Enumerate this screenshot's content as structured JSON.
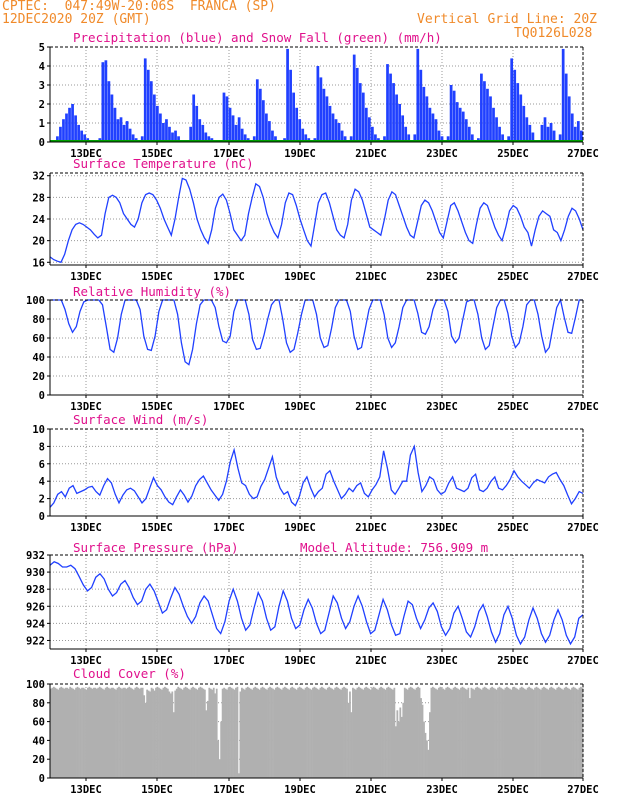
{
  "header": {
    "line1": "CPTEC:  047:49W-20:06S  FRANCA (SP)",
    "line2": "12DEC2020 20Z (GMT)",
    "grid_line": "Vertical Grid Line: 20Z",
    "code": "TQ0126L028"
  },
  "colors": {
    "orange": "#f08a2a",
    "magenta": "#e0108c",
    "blue": "#2040ff",
    "green": "#00a000",
    "gray": "#b0b0b0"
  },
  "x_labels": [
    "13DEC",
    "15DEC",
    "17DEC",
    "19DEC",
    "21DEC",
    "23DEC",
    "25DEC",
    "27DEC"
  ],
  "chart_data": [
    {
      "type": "bar",
      "title": "Precipitation (blue) and Snow Fall (green) (mm/h)",
      "ylim": [
        0,
        5
      ],
      "yticks": [
        "0",
        "1",
        "2",
        "3",
        "4",
        "5"
      ],
      "series": [
        {
          "name": "Precipitation",
          "values": [
            0,
            0.1,
            0.3,
            0.8,
            1.2,
            1.5,
            1.8,
            2.0,
            1.4,
            0.9,
            0.6,
            0.4,
            0.2,
            0.1,
            0,
            0,
            0.2,
            4.2,
            4.3,
            3.2,
            2.5,
            1.8,
            1.2,
            1.3,
            0.9,
            1.1,
            0.7,
            0.4,
            0.2,
            0,
            0.3,
            4.4,
            3.8,
            3.2,
            2.5,
            1.9,
            1.5,
            1.0,
            1.2,
            0.8,
            0.5,
            0.6,
            0.3,
            0,
            0,
            0.1,
            0.8,
            2.5,
            1.9,
            1.2,
            0.9,
            0.5,
            0.3,
            0.2,
            0.1,
            0,
            0.1,
            2.6,
            2.4,
            1.8,
            1.4,
            0.9,
            1.3,
            0.7,
            0.4,
            0.2,
            0,
            0.3,
            3.3,
            2.8,
            2.2,
            1.5,
            1.1,
            0.6,
            0.3,
            0.1,
            0,
            0.2,
            4.9,
            3.8,
            2.6,
            1.8,
            1.2,
            0.7,
            0.4,
            0.2,
            0,
            0.2,
            4.0,
            3.4,
            2.8,
            2.4,
            1.9,
            1.5,
            1.2,
            1.0,
            0.6,
            0.3,
            0,
            0.3,
            4.6,
            3.9,
            3.1,
            2.6,
            1.8,
            1.3,
            0.8,
            0.4,
            0.2,
            0,
            0.3,
            4.1,
            3.6,
            3.1,
            2.5,
            2.0,
            1.4,
            0.8,
            0.4,
            0,
            0.4,
            4.9,
            3.8,
            2.9,
            2.4,
            1.8,
            1.5,
            1.2,
            0.6,
            0.3,
            0,
            0.3,
            3.0,
            2.7,
            2.1,
            1.8,
            1.6,
            1.2,
            0.8,
            0.4,
            0,
            0.2,
            3.6,
            3.2,
            2.8,
            2.4,
            1.8,
            1.3,
            0.8,
            0.4,
            0,
            0.3,
            4.4,
            3.8,
            3.1,
            2.5,
            1.9,
            1.3,
            0.9,
            0.5,
            0,
            0.1,
            0.9,
            1.3,
            0.8,
            1.0,
            0.6,
            0,
            0.4,
            4.9,
            3.6,
            2.4,
            1.5,
            0.8,
            1.1,
            0.6
          ]
        },
        {
          "name": "Snow Fall",
          "values": [
            0
          ]
        }
      ]
    },
    {
      "type": "line",
      "title": "Surface Temperature (nC)",
      "ylim": [
        15.5,
        32.5
      ],
      "yticks": [
        "16",
        "20",
        "24",
        "28",
        "32"
      ],
      "ytick_values": [
        16,
        20,
        24,
        28,
        32
      ],
      "values": [
        17,
        16.5,
        16.2,
        16.0,
        17.5,
        20,
        22,
        23,
        23.3,
        23,
        22.5,
        22,
        21.2,
        20.5,
        21,
        25,
        28,
        28.4,
        28,
        27,
        25,
        24,
        23,
        22.5,
        24,
        27,
        28.5,
        28.8,
        28.5,
        27.5,
        26,
        24,
        22.5,
        21,
        24,
        28,
        31.5,
        31.2,
        29.5,
        27,
        24,
        22,
        20.5,
        19.5,
        22,
        26,
        28,
        28.6,
        27.5,
        25,
        22,
        21,
        20,
        21,
        25,
        28,
        30.5,
        30,
        28,
        25,
        23,
        21.5,
        20.5,
        23,
        27,
        28.8,
        28.5,
        26.5,
        24,
        22,
        20,
        19,
        23,
        27,
        28.5,
        28.8,
        27,
        24.5,
        22,
        21,
        20.5,
        23,
        27.5,
        29.5,
        29,
        27.5,
        25,
        22.5,
        22,
        21.5,
        21,
        24,
        27.5,
        29,
        28.5,
        26.5,
        24.5,
        22.5,
        21,
        20.5,
        23.5,
        26.5,
        27.5,
        27,
        25.5,
        23.5,
        21.5,
        20.5,
        23.5,
        26.5,
        27,
        25.5,
        23.5,
        21.5,
        20,
        19.5,
        23,
        26,
        27,
        26.5,
        24.5,
        22.5,
        21,
        20,
        22.5,
        25.5,
        26.5,
        26,
        24.5,
        22.5,
        21.5,
        19,
        22,
        24.5,
        25.5,
        25,
        24.5,
        22,
        21.5,
        20,
        22,
        24.5,
        26,
        25.5,
        24,
        22
      ]
    },
    {
      "type": "line",
      "title": "Relative Humidity (%)",
      "ylim": [
        0,
        100
      ],
      "yticks": [
        "0",
        "20",
        "40",
        "60",
        "80",
        "100"
      ],
      "ytick_values": [
        0,
        20,
        40,
        60,
        80,
        100
      ],
      "values": [
        100,
        100,
        100,
        100,
        90,
        75,
        66,
        72,
        88,
        98,
        100,
        100,
        100,
        100,
        95,
        72,
        48,
        45,
        60,
        85,
        100,
        100,
        100,
        100,
        90,
        62,
        48,
        47,
        62,
        88,
        100,
        100,
        100,
        100,
        85,
        55,
        35,
        32,
        48,
        75,
        95,
        100,
        100,
        100,
        92,
        72,
        57,
        55,
        62,
        88,
        100,
        100,
        100,
        85,
        58,
        48,
        49,
        63,
        80,
        95,
        100,
        100,
        80,
        55,
        45,
        48,
        65,
        85,
        100,
        100,
        100,
        85,
        60,
        50,
        52,
        70,
        92,
        100,
        100,
        100,
        88,
        62,
        48,
        50,
        70,
        90,
        100,
        100,
        100,
        85,
        60,
        50,
        55,
        72,
        92,
        100,
        100,
        100,
        86,
        66,
        64,
        72,
        90,
        100,
        100,
        100,
        88,
        62,
        55,
        60,
        80,
        98,
        100,
        100,
        85,
        60,
        48,
        52,
        72,
        92,
        100,
        100,
        86,
        62,
        50,
        55,
        72,
        95,
        100,
        100,
        85,
        62,
        45,
        50,
        72,
        92,
        100,
        82,
        66,
        65,
        82,
        100,
        100
      ]
    },
    {
      "type": "line",
      "title": "Surface Wind (m/s)",
      "ylim": [
        0,
        10
      ],
      "yticks": [
        "0",
        "2",
        "4",
        "6",
        "8",
        "10"
      ],
      "ytick_values": [
        0,
        2,
        4,
        6,
        8,
        10
      ],
      "values": [
        1,
        1.5,
        2.5,
        2.8,
        2.2,
        3.2,
        3.5,
        2.6,
        2.8,
        3.0,
        3.3,
        3.4,
        2.8,
        2.4,
        3.5,
        4.3,
        3.8,
        2.5,
        1.5,
        2.4,
        3.0,
        3.2,
        2.9,
        2.2,
        1.5,
        2.0,
        3.2,
        4.4,
        3.5,
        3.0,
        2.2,
        1.6,
        1.3,
        2.2,
        3.0,
        2.4,
        1.6,
        2.3,
        3.5,
        4.2,
        4.6,
        3.8,
        3.0,
        2.4,
        1.8,
        2.5,
        4.0,
        6.2,
        7.6,
        5.5,
        3.8,
        3.5,
        2.5,
        2.0,
        2.2,
        3.4,
        4.2,
        5.5,
        6.8,
        4.5,
        3.2,
        2.5,
        2.8,
        1.6,
        1.2,
        2.2,
        3.8,
        4.5,
        3.2,
        2.2,
        2.8,
        3.2,
        4.8,
        5.2,
        4.0,
        3.0,
        2.0,
        2.5,
        3.2,
        2.8,
        3.5,
        3.8,
        2.6,
        2.2,
        3.0,
        3.6,
        4.5,
        7.5,
        5.5,
        3.0,
        2.5,
        3.2,
        4.0,
        4.0,
        7.0,
        8.0,
        5.0,
        2.8,
        3.5,
        4.5,
        4.2,
        3.0,
        2.5,
        2.8,
        3.8,
        4.5,
        3.2,
        3.0,
        2.8,
        3.2,
        4.4,
        4.8,
        3.0,
        2.8,
        3.2,
        4.0,
        4.5,
        3.2,
        3.0,
        3.5,
        4.2,
        5.2,
        4.5,
        4.0,
        3.6,
        3.2,
        3.8,
        4.2,
        4.0,
        3.8,
        4.5,
        4.8,
        5.0,
        4.2,
        3.5,
        2.4,
        1.4,
        2.0,
        2.8,
        2.6
      ]
    },
    {
      "type": "line",
      "title": "Surface Pressure (hPa)",
      "annotation": "Model Altitude: 756.909  m",
      "ylim": [
        921,
        932
      ],
      "yticks": [
        "922",
        "924",
        "926",
        "928",
        "930",
        "932"
      ],
      "ytick_values": [
        922,
        924,
        926,
        928,
        930,
        932
      ],
      "values": [
        930.8,
        931.2,
        931.0,
        930.6,
        930.6,
        930.8,
        930.4,
        929.5,
        928.5,
        927.8,
        928.2,
        929.4,
        929.8,
        929.2,
        928.0,
        927.2,
        927.6,
        928.6,
        929.0,
        928.2,
        927.0,
        926.2,
        926.6,
        928.0,
        928.6,
        927.8,
        926.5,
        925.2,
        925.6,
        927.0,
        928.2,
        927.4,
        926.0,
        924.8,
        924.0,
        924.8,
        926.4,
        927.2,
        926.6,
        925.0,
        923.4,
        922.8,
        924.2,
        926.6,
        928.0,
        926.6,
        924.6,
        923.2,
        923.8,
        925.8,
        927.6,
        926.6,
        924.6,
        923.2,
        923.6,
        926.0,
        927.8,
        926.6,
        924.6,
        923.4,
        923.8,
        925.6,
        926.8,
        925.8,
        924.0,
        922.8,
        923.2,
        925.2,
        927.2,
        926.4,
        924.6,
        923.4,
        924.2,
        926.0,
        927.2,
        926.0,
        924.2,
        922.8,
        923.2,
        925.0,
        926.8,
        925.6,
        923.8,
        922.6,
        922.8,
        924.8,
        926.6,
        926.2,
        924.6,
        923.4,
        924.4,
        925.8,
        926.4,
        925.4,
        923.6,
        922.6,
        923.4,
        925.2,
        926.0,
        924.6,
        923.0,
        922.4,
        923.6,
        925.4,
        926.2,
        924.8,
        923.0,
        921.8,
        922.8,
        925.0,
        926.0,
        924.6,
        922.6,
        921.6,
        922.4,
        924.4,
        925.8,
        924.6,
        922.8,
        921.8,
        922.6,
        924.4,
        925.6,
        924.4,
        922.6,
        921.6,
        922.4,
        924.6,
        925.0
      ]
    },
    {
      "type": "bar",
      "title": "Cloud Cover (%)",
      "ylim": [
        0,
        100
      ],
      "yticks": [
        "0",
        "20",
        "40",
        "60",
        "80",
        "100"
      ],
      "values": [
        95,
        96,
        97,
        96,
        95,
        94,
        96,
        97,
        96,
        95,
        96,
        96,
        95,
        97,
        96,
        95,
        94,
        96,
        97,
        96,
        95,
        96,
        96,
        95,
        94,
        96,
        97,
        96,
        95,
        96,
        96,
        95,
        96,
        97,
        96,
        95,
        94,
        96,
        97,
        96,
        95,
        96,
        96,
        95,
        94,
        96,
        97,
        96,
        95,
        96,
        96,
        95,
        96,
        97,
        96,
        95,
        94,
        96,
        97,
        96,
        95,
        96,
        96,
        88,
        80,
        94,
        93,
        92,
        96,
        95,
        93,
        96,
        97,
        96,
        95,
        94,
        96,
        97,
        96,
        95,
        92,
        90,
        92,
        70,
        93,
        95,
        97,
        96,
        95,
        94,
        96,
        97,
        96,
        95,
        94,
        96,
        97,
        96,
        95,
        94,
        96,
        97,
        96,
        95,
        94,
        72,
        82,
        96,
        95,
        94,
        96,
        90,
        95,
        40,
        20,
        60,
        95,
        96,
        95,
        94,
        96,
        97,
        96,
        95,
        94,
        96,
        97,
        5,
        92,
        96,
        95,
        94,
        96,
        97,
        96,
        95,
        94,
        96,
        97,
        96,
        95,
        94,
        96,
        97,
        96,
        95,
        94,
        96,
        97,
        96,
        95,
        94,
        96,
        97,
        96,
        95,
        94,
        96,
        97,
        96,
        95,
        94,
        96,
        97,
        96,
        95,
        94,
        96,
        97,
        96,
        95,
        94,
        96,
        97,
        96,
        95,
        94,
        96,
        97,
        96,
        95,
        94,
        96,
        97,
        96,
        95,
        94,
        96,
        97,
        96,
        95,
        94,
        96,
        97,
        96,
        95,
        94,
        96,
        97,
        96,
        95,
        80,
        92,
        70,
        96,
        95,
        94,
        96,
        97,
        96,
        95,
        94,
        96,
        97,
        96,
        95,
        94,
        96,
        97,
        96,
        95,
        94,
        96,
        97,
        96,
        95,
        94,
        96,
        97,
        96,
        95,
        94,
        96,
        55,
        72,
        60,
        75,
        65,
        80,
        96,
        95,
        94,
        96,
        97,
        96,
        95,
        94,
        96,
        97,
        96,
        85,
        78,
        60,
        48,
        40,
        30,
        70,
        96,
        97,
        96,
        95,
        94,
        96,
        97,
        96,
        95,
        94,
        96,
        97,
        96,
        95,
        94,
        96,
        97,
        96,
        95,
        94,
        96,
        97,
        96,
        95,
        94,
        96,
        85,
        96,
        95,
        94,
        96,
        97,
        96,
        95,
        94,
        96,
        97,
        96,
        95,
        94,
        96,
        97,
        96,
        95,
        94,
        96,
        97,
        96,
        95,
        94,
        96,
        97,
        96,
        95,
        94,
        96,
        97,
        96,
        95,
        94,
        96,
        97,
        96,
        95,
        94,
        96,
        97,
        96,
        95,
        94,
        96,
        97,
        96,
        95,
        94,
        96,
        97,
        96,
        95,
        94,
        96,
        97,
        96,
        95,
        94,
        96,
        97,
        96,
        95,
        94,
        96,
        97,
        96,
        95,
        94,
        96,
        97,
        96,
        95,
        94,
        96,
        97,
        96
      ]
    }
  ]
}
